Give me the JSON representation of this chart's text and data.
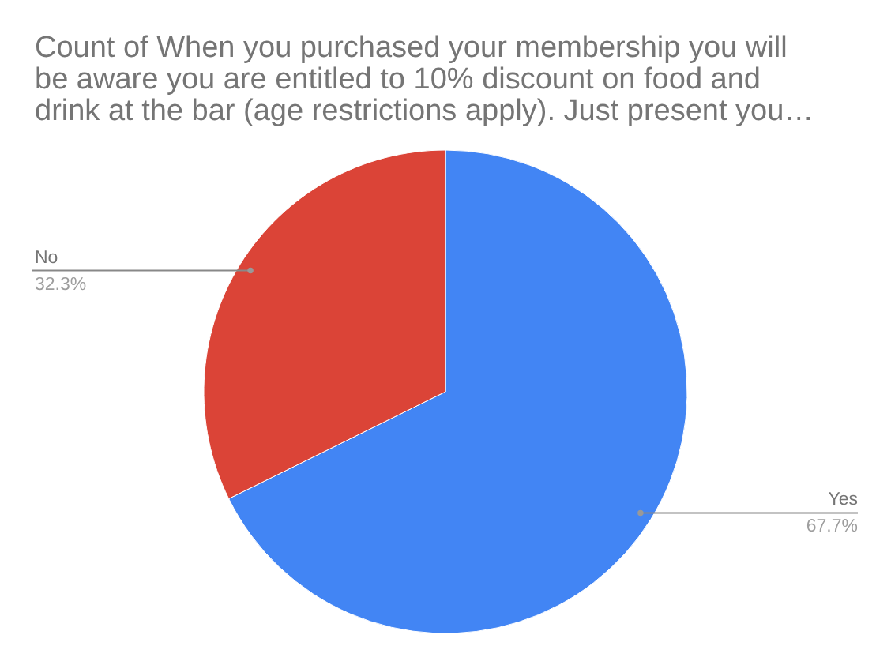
{
  "chart_data": {
    "type": "pie",
    "title": "Count of When you purchased your membership you will be aware you are entitled to 10% discount on food and drink at the bar (age restrictions apply).  Just present you…",
    "categories": [
      "Yes",
      "No"
    ],
    "values": [
      67.7,
      32.3
    ],
    "colors": [
      "#4285f4",
      "#db4437"
    ],
    "value_labels": [
      "67.7%",
      "32.3%"
    ]
  }
}
